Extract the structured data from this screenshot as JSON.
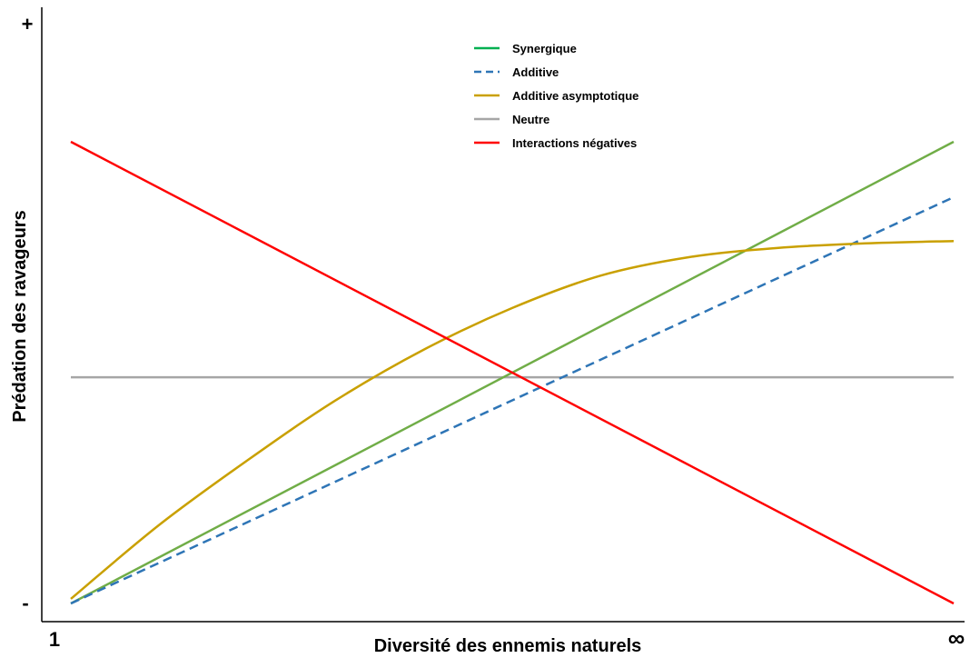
{
  "chart_data": {
    "type": "line",
    "title": "",
    "xlabel": "Diversité des ennemis naturels",
    "ylabel": "Prédation des ravageurs",
    "x_ticks": {
      "min_label": "1",
      "max_label": "∞"
    },
    "y_ticks": {
      "max_label": "+",
      "min_label": "-"
    },
    "xlim": [
      0,
      1
    ],
    "ylim": [
      0,
      1
    ],
    "grid": false,
    "legend_position": "top-center",
    "series": [
      {
        "name": "Synergique",
        "color": "#70ad47",
        "style": "solid",
        "x": [
          0,
          1
        ],
        "y": [
          0.0,
          1.0
        ]
      },
      {
        "name": "Additive",
        "color": "#2e75b6",
        "style": "dashed",
        "x": [
          0,
          1
        ],
        "y": [
          0.0,
          0.88
        ]
      },
      {
        "name": "Additive asymptotique",
        "color": "#c9a000",
        "style": "solid",
        "x": [
          0,
          0.1,
          0.2,
          0.3,
          0.4,
          0.5,
          0.6,
          0.7,
          0.8,
          0.9,
          1.0
        ],
        "y": [
          0.01,
          0.17,
          0.31,
          0.44,
          0.55,
          0.64,
          0.71,
          0.75,
          0.77,
          0.78,
          0.785
        ]
      },
      {
        "name": "Neutre",
        "color": "#a6a6a6",
        "style": "solid",
        "x": [
          0,
          1
        ],
        "y": [
          0.49,
          0.49
        ]
      },
      {
        "name": "Interactions négatives",
        "color": "#ff0000",
        "style": "solid",
        "x": [
          0,
          1
        ],
        "y": [
          1.0,
          0.0
        ]
      }
    ],
    "legend_colors": {
      "Synergique": "#00b050",
      "Additive": "#2e75b6",
      "Additive asymptotique": "#c9a000",
      "Neutre": "#a6a6a6",
      "Interactions négatives": "#ff0000"
    }
  }
}
